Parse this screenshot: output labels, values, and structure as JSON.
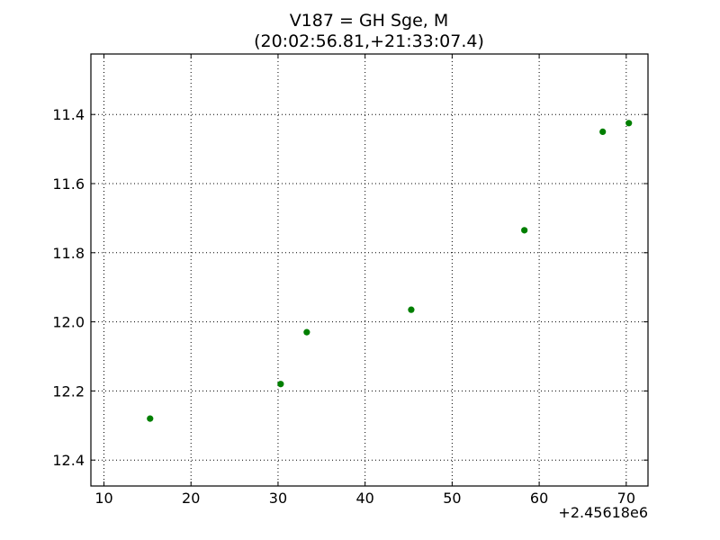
{
  "chart_data": {
    "type": "scatter",
    "title_line1": "V187 = GH Sge, M",
    "title_line2": "(20:02:56.81,+21:33:07.4)",
    "xlabel": "",
    "ylabel": "",
    "x_offset_label": "+2.45618e6",
    "xlim": [
      8.5,
      72.5
    ],
    "ylim": [
      12.475,
      11.225
    ],
    "y_inverted": true,
    "grid": true,
    "marker_color": "#007f00",
    "x_ticks": [
      10,
      20,
      30,
      40,
      50,
      60,
      70
    ],
    "x_tick_labels": [
      "10",
      "20",
      "30",
      "40",
      "50",
      "60",
      "70"
    ],
    "y_ticks": [
      11.4,
      11.6,
      11.8,
      12.0,
      12.2,
      12.4
    ],
    "y_tick_labels": [
      "11.4",
      "11.6",
      "11.8",
      "12.0",
      "12.2",
      "12.4"
    ],
    "series": [
      {
        "x": [
          15.3,
          30.3,
          33.3,
          45.3,
          58.3,
          67.3,
          70.3
        ],
        "y": [
          12.28,
          12.18,
          12.03,
          11.965,
          11.735,
          11.45,
          11.425
        ]
      }
    ]
  }
}
